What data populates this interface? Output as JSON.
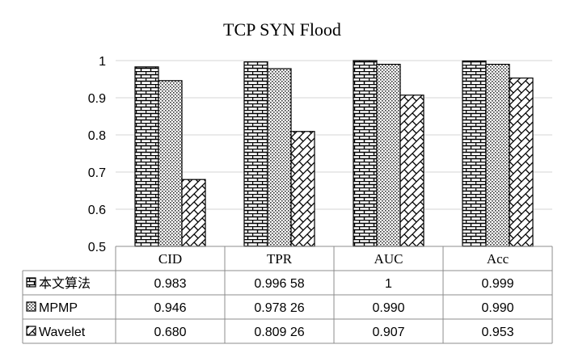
{
  "chart_data": {
    "type": "bar",
    "title": "TCP SYN Flood",
    "categories": [
      "CID",
      "TPR",
      "AUC",
      "Acc"
    ],
    "ylim": [
      0.5,
      1
    ],
    "yticks": [
      "0.5",
      "0.6",
      "0.7",
      "0.8",
      "0.9",
      "1"
    ],
    "grid": true,
    "legend": "bottom-left (data table)",
    "series": [
      {
        "name": "本文算法",
        "pattern": "brick",
        "values": [
          0.983,
          0.99658,
          1,
          0.999
        ],
        "labels": [
          "0.983",
          "0.996 58",
          "1",
          "0.999"
        ]
      },
      {
        "name": "MPMP",
        "pattern": "dots",
        "values": [
          0.946,
          0.97826,
          0.99,
          0.99
        ],
        "labels": [
          "0.946",
          "0.978 26",
          "0.990",
          "0.990"
        ]
      },
      {
        "name": "Wavelet",
        "pattern": "zigzag",
        "values": [
          0.68,
          0.80926,
          0.907,
          0.953
        ],
        "labels": [
          "0.680",
          "0.809 26",
          "0.907",
          "0.953"
        ]
      }
    ]
  }
}
